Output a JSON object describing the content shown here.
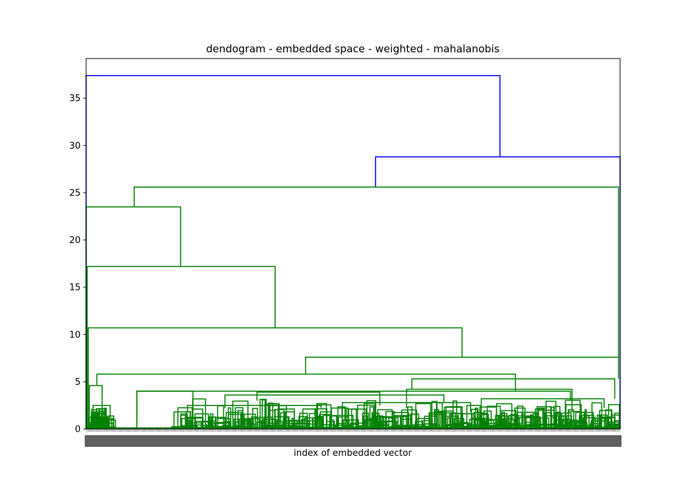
{
  "chart_data": {
    "type": "dendrogram",
    "title": "dendogram - embedded space - weighted - mahalanobis",
    "xlabel": "index of embedded vector",
    "ylabel": "",
    "ylim": [
      0,
      39.2
    ],
    "yticks": [
      0,
      5,
      10,
      15,
      20,
      25,
      30,
      35
    ],
    "grid": false,
    "colors": {
      "above_threshold": "#0000ff",
      "cluster": "#008000",
      "axes": "#000000"
    },
    "merges": [
      {
        "left": 0.0,
        "right": 0.775,
        "height": 37.4,
        "color": "#0000ff"
      },
      {
        "left": 0.542,
        "right": 1.0,
        "height": 28.8,
        "color": "#0000ff"
      },
      {
        "left": 0.09,
        "right": 0.997,
        "height": 25.6,
        "color": "#008000"
      },
      {
        "left": 0.0,
        "right": 0.177,
        "height": 23.5,
        "color": "#008000"
      },
      {
        "left": 0.002,
        "right": 0.354,
        "height": 17.2,
        "color": "#008000"
      },
      {
        "left": 0.004,
        "right": 0.704,
        "height": 10.7,
        "color": "#008000"
      },
      {
        "left": 0.411,
        "right": 0.997,
        "height": 7.6,
        "color": "#008000"
      },
      {
        "left": 0.02,
        "right": 0.804,
        "height": 5.8,
        "color": "#008000"
      },
      {
        "left": 0.61,
        "right": 0.99,
        "height": 5.3,
        "color": "#008000"
      },
      {
        "left": 0.095,
        "right": 0.907,
        "height": 4.0,
        "color": "#008000"
      },
      {
        "left": 0.006,
        "right": 0.03,
        "height": 4.6,
        "color": "#008000"
      }
    ],
    "leaf_level_band_height": 3.2
  }
}
